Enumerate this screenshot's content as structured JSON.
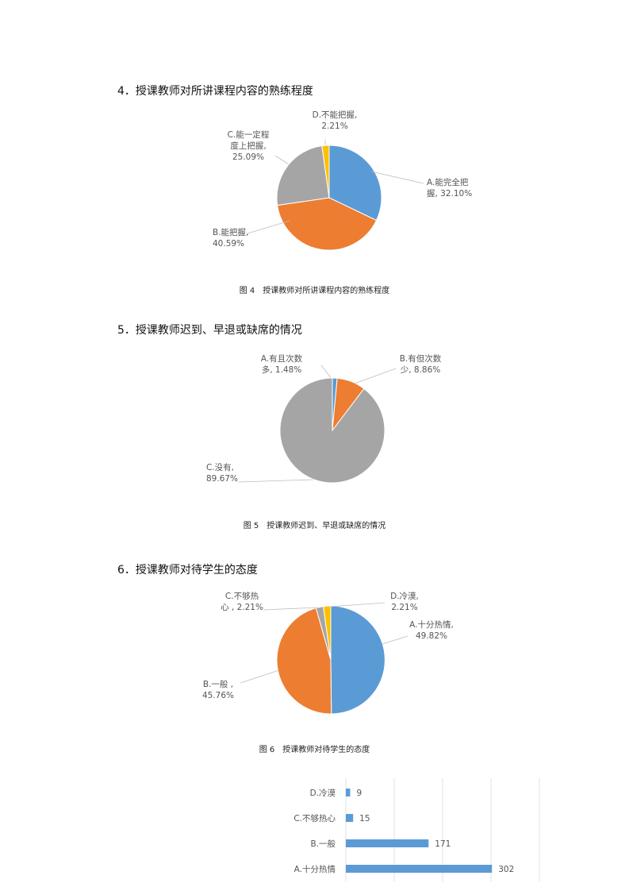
{
  "headings": {
    "h4": "4．授课教师对所讲课程内容的熟练程度",
    "h5": "5．授课教师迟到、早退或缺席的情况",
    "h6": "6．授课教师对待学生的态度"
  },
  "captions": {
    "fig4": "图 4　授课教师对所讲课程内容的熟练程度",
    "fig5": "图 5　授课教师迟到、早退或缺席的情况",
    "fig6": "图 6　授课教师对待学生的态度"
  },
  "chart_data": [
    {
      "type": "pie",
      "title": "",
      "slices": [
        {
          "name": "A.能完全把握",
          "value": 32.1,
          "label_lines": [
            "A.能完全把",
            "握, 32.10%"
          ],
          "color": "#5B9BD5"
        },
        {
          "name": "B.能把握",
          "value": 40.59,
          "label_lines": [
            "B.能把握,",
            "40.59%"
          ],
          "color": "#ED7D31"
        },
        {
          "name": "C.能一定程度上把握",
          "value": 25.09,
          "label_lines": [
            "C.能一定程",
            "度上把握,",
            "25.09%"
          ],
          "color": "#A5A5A5"
        },
        {
          "name": "D.不能把握",
          "value": 2.21,
          "label_lines": [
            "D.不能把握,",
            "2.21%"
          ],
          "color": "#FFC000"
        }
      ]
    },
    {
      "type": "pie",
      "title": "",
      "slices": [
        {
          "name": "A.有且次数多",
          "value": 1.48,
          "label_lines": [
            "A.有且次数",
            "多, 1.48%"
          ],
          "color": "#5B9BD5"
        },
        {
          "name": "B.有但次数少",
          "value": 8.86,
          "label_lines": [
            "B.有但次数",
            "少, 8.86%"
          ],
          "color": "#ED7D31"
        },
        {
          "name": "C.没有",
          "value": 89.67,
          "label_lines": [
            "C.没有,",
            "89.67%"
          ],
          "color": "#A5A5A5"
        }
      ]
    },
    {
      "type": "pie",
      "title": "",
      "slices": [
        {
          "name": "A.十分热情",
          "value": 49.82,
          "label_lines": [
            "A.十分热情,",
            "49.82%"
          ],
          "color": "#5B9BD5"
        },
        {
          "name": "B.一般",
          "value": 45.76,
          "label_lines": [
            "B.一般 ,",
            "45.76%"
          ],
          "color": "#ED7D31"
        },
        {
          "name": "C.不够热心",
          "value": 2.21,
          "label_lines": [
            "C.不够热",
            "心 , 2.21%"
          ],
          "color": "#A5A5A5"
        },
        {
          "name": "D.冷漠",
          "value": 2.21,
          "label_lines": [
            "D.冷漠,",
            "2.21%"
          ],
          "color": "#FFC000"
        }
      ]
    },
    {
      "type": "bar",
      "orientation": "horizontal",
      "categories": [
        "D.冷漠",
        "C.不够热心",
        "B.一般",
        "A.十分热情"
      ],
      "values": [
        9,
        15,
        171,
        302
      ],
      "value_labels": [
        "9",
        "15",
        "171",
        "302"
      ],
      "xlim": [
        0,
        400
      ],
      "xticks": [
        "0",
        "100",
        "200",
        "300",
        "400"
      ],
      "grid": true,
      "color": "#5B9BD5"
    }
  ]
}
